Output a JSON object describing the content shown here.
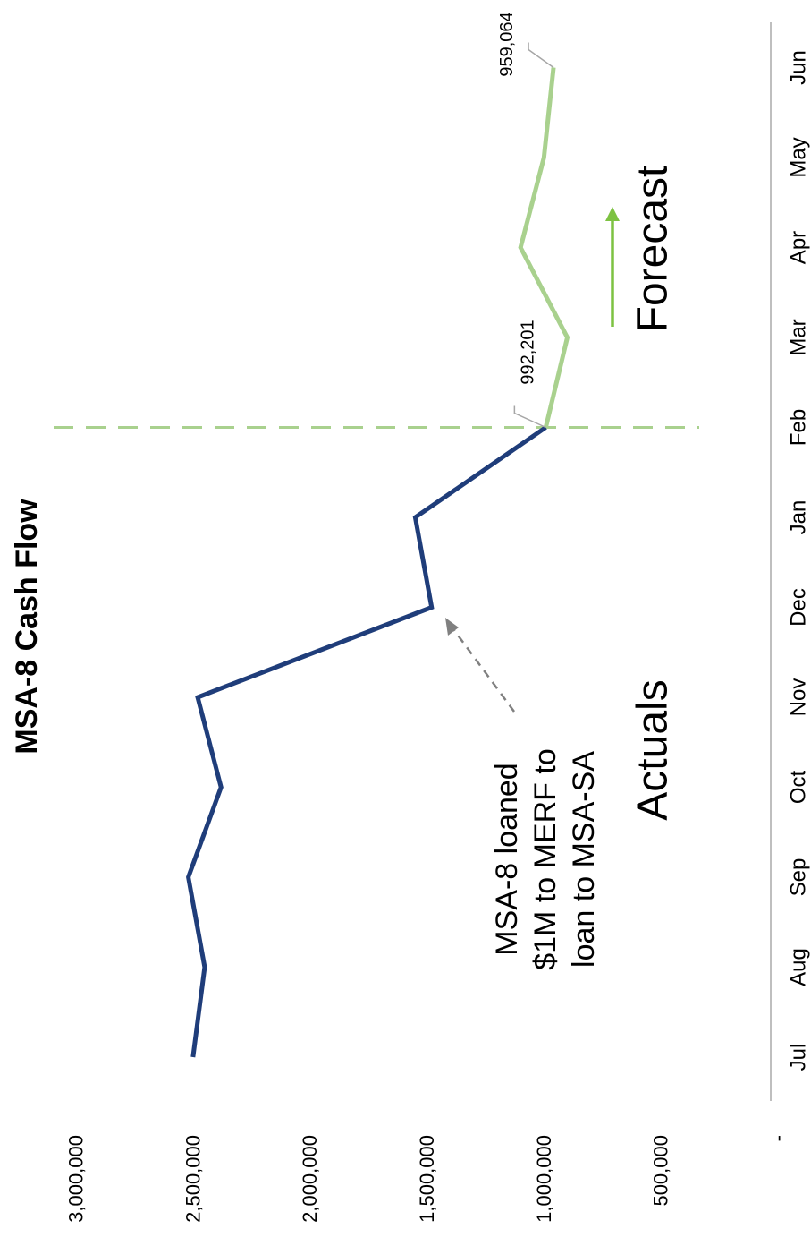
{
  "chart_data": {
    "type": "line",
    "title": "MSA-8  Cash Flow",
    "categories": [
      "Jul",
      "Aug",
      "Sep",
      "Oct",
      "Nov",
      "Dec",
      "Jan",
      "Feb",
      "Mar",
      "Apr",
      "May",
      "Jun"
    ],
    "series": [
      {
        "name": "Actuals",
        "color": "#1f3d7a",
        "values": [
          2500000,
          2450000,
          2520000,
          2380000,
          2480000,
          1480000,
          1550000,
          992201,
          null,
          null,
          null,
          null
        ]
      },
      {
        "name": "Forecast",
        "color": "#a9d18e",
        "values": [
          null,
          null,
          null,
          null,
          null,
          null,
          null,
          992201,
          900000,
          1100000,
          1000000,
          959064
        ],
        "value_labels": [
          null,
          null,
          null,
          null,
          null,
          null,
          null,
          "992,201",
          null,
          null,
          null,
          "959,064"
        ]
      }
    ],
    "ylim": [
      0,
      3250000
    ],
    "yticks": [
      {
        "value": 0,
        "label": "-"
      },
      {
        "value": 500000,
        "label": "500,000"
      },
      {
        "value": 1000000,
        "label": "1,000,000"
      },
      {
        "value": 1500000,
        "label": "1,500,000"
      },
      {
        "value": 2000000,
        "label": "2,000,000"
      },
      {
        "value": 2500000,
        "label": "2,500,000"
      },
      {
        "value": 3000000,
        "label": "3,000,000"
      }
    ],
    "annotation": [
      "MSA-8 loaned",
      "$1M to MERF to",
      "loan to MSA-SA"
    ],
    "grid": false
  }
}
